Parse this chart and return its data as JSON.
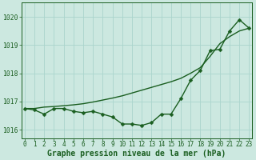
{
  "xlabel": "Graphe pression niveau de la mer (hPa)",
  "bg_color": "#cce8e0",
  "grid_color": "#aad4cc",
  "line_color": "#1a5e20",
  "x_values": [
    0,
    1,
    2,
    3,
    4,
    5,
    6,
    7,
    8,
    9,
    10,
    11,
    12,
    13,
    14,
    15,
    16,
    17,
    18,
    19,
    20,
    21,
    22,
    23
  ],
  "y_actual": [
    1016.75,
    1016.7,
    1016.55,
    1016.75,
    1016.75,
    1016.65,
    1016.6,
    1016.65,
    1016.55,
    1016.45,
    1016.2,
    1016.2,
    1016.15,
    1016.25,
    1016.55,
    1016.55,
    1017.1,
    1017.75,
    1018.1,
    1018.8,
    1018.85,
    1019.5,
    1019.9,
    1019.6
  ],
  "y_smooth": [
    1016.75,
    1016.75,
    1016.8,
    1016.82,
    1016.85,
    1016.88,
    1016.92,
    1016.98,
    1017.05,
    1017.12,
    1017.2,
    1017.3,
    1017.4,
    1017.5,
    1017.6,
    1017.7,
    1017.82,
    1018.0,
    1018.2,
    1018.6,
    1019.05,
    1019.3,
    1019.5,
    1019.6
  ],
  "ylim": [
    1015.7,
    1020.5
  ],
  "xlim": [
    -0.3,
    23.3
  ],
  "yticks": [
    1016,
    1017,
    1018,
    1019,
    1020
  ],
  "xticks": [
    0,
    1,
    2,
    3,
    4,
    5,
    6,
    7,
    8,
    9,
    10,
    11,
    12,
    13,
    14,
    15,
    16,
    17,
    18,
    19,
    20,
    21,
    22,
    23
  ],
  "marker_size": 2.5,
  "line_width": 1.0,
  "tick_fontsize": 5.5,
  "label_fontsize": 7.0
}
